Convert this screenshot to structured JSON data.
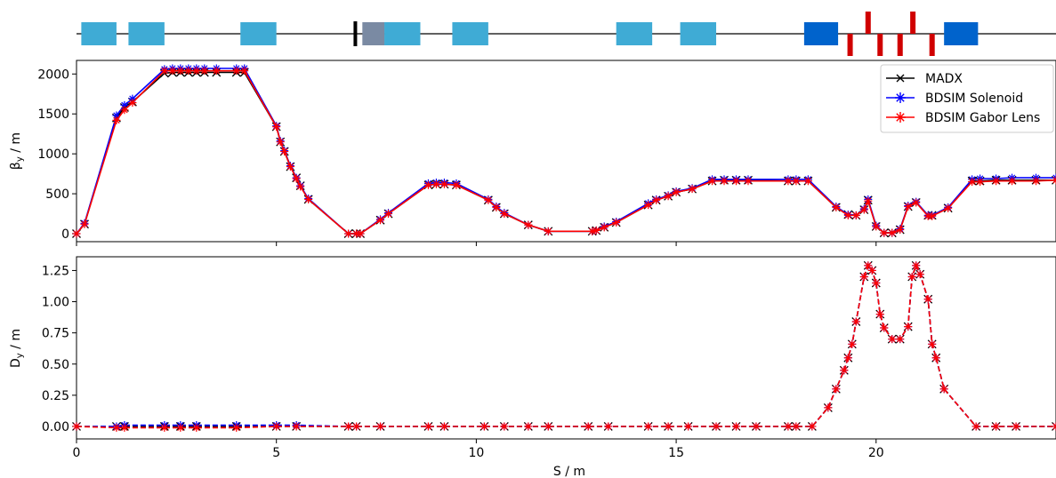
{
  "figure": {
    "legend": {
      "items": [
        {
          "label": "MADX",
          "color": "#000000",
          "marker": "x"
        },
        {
          "label": "BDSIM Solenoid",
          "color": "#0000ff",
          "marker": "star"
        },
        {
          "label": "BDSIM Gabor Lens",
          "color": "#ff0000",
          "marker": "star"
        }
      ],
      "placement": "top-right"
    },
    "machine_diagram": {
      "colors": {
        "quad": "#3fabd5",
        "gabor": "#0063cc",
        "collimator": "#7a8aa3",
        "kicker": "#d00000",
        "marker": "#000000"
      }
    }
  },
  "chart_data": [
    {
      "type": "line",
      "ylabel": "β_y / m",
      "xlim": [
        0,
        24.5
      ],
      "ylim": [
        -100,
        2170
      ],
      "yticks": [
        0,
        500,
        1000,
        1500,
        2000
      ],
      "grid": false,
      "series": [
        {
          "name": "MADX",
          "color": "#000000",
          "style": "solid",
          "x": [
            0,
            0.2,
            1,
            1.2,
            1.4,
            2.2,
            2.4,
            2.6,
            2.8,
            3.0,
            3.2,
            3.5,
            4.0,
            4.2,
            5.0,
            5.1,
            5.2,
            5.35,
            5.5,
            5.6,
            5.8,
            6.8,
            7.0,
            7.1,
            7.6,
            7.8,
            8.8,
            9.0,
            9.2,
            9.5,
            10.3,
            10.5,
            10.7,
            11.3,
            11.8,
            12.9,
            13.0,
            13.2,
            13.5,
            14.3,
            14.5,
            14.8,
            15.0,
            15.4,
            15.9,
            16.2,
            16.5,
            16.8,
            17.8,
            18.0,
            18.3,
            19.0,
            19.3,
            19.5,
            19.7,
            19.8,
            20.0,
            20.2,
            20.4,
            20.6,
            20.8,
            21.0,
            21.3,
            21.4,
            21.8,
            22.4,
            22.6,
            23.0,
            23.4,
            24.0,
            24.5
          ],
          "y": [
            0,
            120,
            1450,
            1580,
            1650,
            2010,
            2020,
            2020,
            2020,
            2020,
            2020,
            2020,
            2020,
            2020,
            1340,
            1150,
            1030,
            840,
            700,
            600,
            430,
            0,
            0,
            0,
            170,
            250,
            610,
            620,
            620,
            610,
            420,
            330,
            250,
            110,
            30,
            30,
            40,
            80,
            140,
            360,
            420,
            470,
            520,
            560,
            660,
            670,
            670,
            670,
            660,
            660,
            660,
            330,
            240,
            230,
            300,
            420,
            90,
            10,
            10,
            50,
            340,
            390,
            230,
            230,
            320,
            660,
            660,
            670,
            670,
            670,
            670
          ]
        },
        {
          "name": "BDSIM Solenoid",
          "color": "#0000ff",
          "style": "solid",
          "x": [
            0,
            0.2,
            1,
            1.2,
            1.4,
            2.2,
            2.4,
            2.6,
            2.8,
            3.0,
            3.2,
            3.5,
            4.0,
            4.2,
            5.0,
            5.1,
            5.2,
            5.35,
            5.5,
            5.6,
            5.8,
            6.8,
            7.0,
            7.1,
            7.6,
            7.8,
            8.8,
            9.0,
            9.2,
            9.5,
            10.3,
            10.5,
            10.7,
            11.3,
            11.8,
            12.9,
            13.0,
            13.2,
            13.5,
            14.3,
            14.5,
            14.8,
            15.0,
            15.4,
            15.9,
            16.2,
            16.5,
            16.8,
            17.8,
            18.0,
            18.3,
            19.0,
            19.3,
            19.5,
            19.7,
            19.8,
            20.0,
            20.2,
            20.4,
            20.6,
            20.8,
            21.0,
            21.3,
            21.4,
            21.8,
            22.4,
            22.6,
            23.0,
            23.4,
            24.0,
            24.5
          ],
          "y": [
            0,
            130,
            1480,
            1610,
            1690,
            2060,
            2070,
            2070,
            2070,
            2070,
            2070,
            2070,
            2070,
            2070,
            1350,
            1160,
            1040,
            850,
            700,
            600,
            440,
            0,
            0,
            0,
            180,
            260,
            630,
            640,
            640,
            630,
            430,
            340,
            260,
            110,
            30,
            30,
            40,
            90,
            150,
            380,
            430,
            480,
            530,
            570,
            680,
            680,
            680,
            680,
            680,
            680,
            680,
            340,
            240,
            230,
            310,
            430,
            100,
            10,
            10,
            60,
            350,
            400,
            230,
            230,
            330,
            680,
            690,
            690,
            700,
            700,
            700
          ]
        },
        {
          "name": "BDSIM Gabor Lens",
          "color": "#ff0000",
          "style": "solid",
          "x": [
            0,
            0.2,
            1,
            1.2,
            1.4,
            2.2,
            2.4,
            2.6,
            2.8,
            3.0,
            3.2,
            3.5,
            4.0,
            4.2,
            5.0,
            5.1,
            5.2,
            5.35,
            5.5,
            5.6,
            5.8,
            6.8,
            7.0,
            7.1,
            7.6,
            7.8,
            8.8,
            9.0,
            9.2,
            9.5,
            10.3,
            10.5,
            10.7,
            11.3,
            11.8,
            12.9,
            13.0,
            13.2,
            13.5,
            14.3,
            14.5,
            14.8,
            15.0,
            15.4,
            15.9,
            16.2,
            16.5,
            16.8,
            17.8,
            18.0,
            18.3,
            19.0,
            19.3,
            19.5,
            19.7,
            19.8,
            20.0,
            20.2,
            20.4,
            20.6,
            20.8,
            21.0,
            21.3,
            21.4,
            21.8,
            22.4,
            22.6,
            23.0,
            23.4,
            24.0,
            24.5
          ],
          "y": [
            0,
            120,
            1420,
            1550,
            1640,
            2040,
            2040,
            2040,
            2040,
            2040,
            2040,
            2040,
            2040,
            2040,
            1340,
            1150,
            1030,
            840,
            690,
            590,
            430,
            0,
            0,
            0,
            170,
            250,
            610,
            620,
            620,
            610,
            420,
            330,
            250,
            110,
            30,
            30,
            40,
            80,
            140,
            360,
            420,
            470,
            520,
            560,
            660,
            660,
            660,
            660,
            660,
            660,
            660,
            330,
            230,
            230,
            300,
            410,
            90,
            10,
            10,
            50,
            340,
            390,
            220,
            220,
            320,
            650,
            650,
            660,
            660,
            660,
            670
          ]
        }
      ]
    },
    {
      "type": "line",
      "xlabel": "S / m",
      "ylabel": "D_y / m",
      "xlim": [
        0,
        24.5
      ],
      "ylim": [
        -0.1,
        1.36
      ],
      "xticks": [
        0,
        5,
        10,
        15,
        20
      ],
      "yticks": [
        0.0,
        0.25,
        0.5,
        0.75,
        1.0,
        1.25
      ],
      "ytick_labels": [
        "0.00",
        "0.25",
        "0.50",
        "0.75",
        "1.00",
        "1.25"
      ],
      "grid": false,
      "series": [
        {
          "name": "MADX",
          "color": "#000000",
          "style": "dashed",
          "x": [
            0,
            1,
            1.2,
            2.2,
            2.6,
            3.0,
            4.0,
            5.0,
            5.5,
            6.8,
            7.0,
            7.6,
            8.8,
            9.2,
            10.2,
            10.7,
            11.3,
            11.8,
            12.8,
            13.3,
            14.3,
            14.8,
            15.3,
            16.0,
            16.5,
            17.0,
            17.8,
            18.0,
            18.4,
            18.8,
            19.0,
            19.2,
            19.3,
            19.4,
            19.5,
            19.7,
            19.8,
            19.9,
            20.0,
            20.1,
            20.2,
            20.4,
            20.6,
            20.8,
            20.9,
            21.0,
            21.1,
            21.3,
            21.4,
            21.5,
            21.7,
            22.5,
            23.0,
            23.5,
            24.5
          ],
          "y": [
            0,
            0,
            0,
            0,
            0,
            0,
            0,
            0,
            0,
            0,
            0,
            0,
            0,
            0,
            0,
            0,
            0,
            0,
            0,
            0,
            0,
            0,
            0,
            0,
            0,
            0,
            0,
            0,
            0,
            0.15,
            0.3,
            0.45,
            0.55,
            0.66,
            0.84,
            1.2,
            1.29,
            1.25,
            1.15,
            0.9,
            0.79,
            0.7,
            0.7,
            0.8,
            1.2,
            1.29,
            1.22,
            1.02,
            0.66,
            0.55,
            0.3,
            0,
            0,
            0,
            0
          ]
        },
        {
          "name": "BDSIM Solenoid",
          "color": "#0000ff",
          "style": "dashed",
          "x": [
            0,
            1,
            1.2,
            2.2,
            2.6,
            3.0,
            4.0,
            5.0,
            5.5,
            6.8,
            7.0,
            7.6,
            8.8,
            9.2,
            10.2,
            10.7,
            11.3,
            11.8,
            12.8,
            13.3,
            14.3,
            14.8,
            15.3,
            16.0,
            16.5,
            17.0,
            17.8,
            18.0,
            18.4,
            18.8,
            19.0,
            19.2,
            19.3,
            19.4,
            19.5,
            19.7,
            19.8,
            19.9,
            20.0,
            20.1,
            20.2,
            20.4,
            20.6,
            20.8,
            20.9,
            21.0,
            21.1,
            21.3,
            21.4,
            21.5,
            21.7,
            22.5,
            23.0,
            23.5,
            24.5
          ],
          "y": [
            0,
            0,
            0.01,
            0.01,
            0.01,
            0.01,
            0.01,
            0.01,
            0.01,
            0,
            0,
            0,
            0,
            0,
            0,
            0,
            0,
            0,
            0,
            0,
            0,
            0,
            0,
            0,
            0,
            0,
            0,
            0,
            0,
            0.15,
            0.3,
            0.45,
            0.55,
            0.66,
            0.84,
            1.2,
            1.29,
            1.25,
            1.15,
            0.9,
            0.79,
            0.7,
            0.7,
            0.8,
            1.2,
            1.29,
            1.22,
            1.02,
            0.66,
            0.55,
            0.3,
            0,
            0,
            0,
            0
          ]
        },
        {
          "name": "BDSIM Gabor Lens",
          "color": "#ff0000",
          "style": "dashed",
          "x": [
            0,
            1,
            1.2,
            2.2,
            2.6,
            3.0,
            4.0,
            5.0,
            5.5,
            6.8,
            7.0,
            7.6,
            8.8,
            9.2,
            10.2,
            10.7,
            11.3,
            11.8,
            12.8,
            13.3,
            14.3,
            14.8,
            15.3,
            16.0,
            16.5,
            17.0,
            17.8,
            18.0,
            18.4,
            18.8,
            19.0,
            19.2,
            19.3,
            19.4,
            19.5,
            19.7,
            19.8,
            19.9,
            20.0,
            20.1,
            20.2,
            20.4,
            20.6,
            20.8,
            20.9,
            21.0,
            21.1,
            21.3,
            21.4,
            21.5,
            21.7,
            22.5,
            23.0,
            23.5,
            24.5
          ],
          "y": [
            0,
            -0.01,
            -0.01,
            -0.01,
            -0.01,
            -0.01,
            -0.01,
            0,
            0,
            0,
            0,
            0,
            0,
            0,
            0,
            0,
            0,
            0,
            0,
            0,
            0,
            0,
            0,
            0,
            0,
            0,
            0,
            0,
            0,
            0.15,
            0.3,
            0.45,
            0.55,
            0.66,
            0.84,
            1.2,
            1.29,
            1.25,
            1.15,
            0.9,
            0.79,
            0.7,
            0.7,
            0.8,
            1.2,
            1.29,
            1.22,
            1.02,
            0.66,
            0.55,
            0.3,
            0,
            0,
            0,
            0
          ]
        }
      ]
    }
  ]
}
